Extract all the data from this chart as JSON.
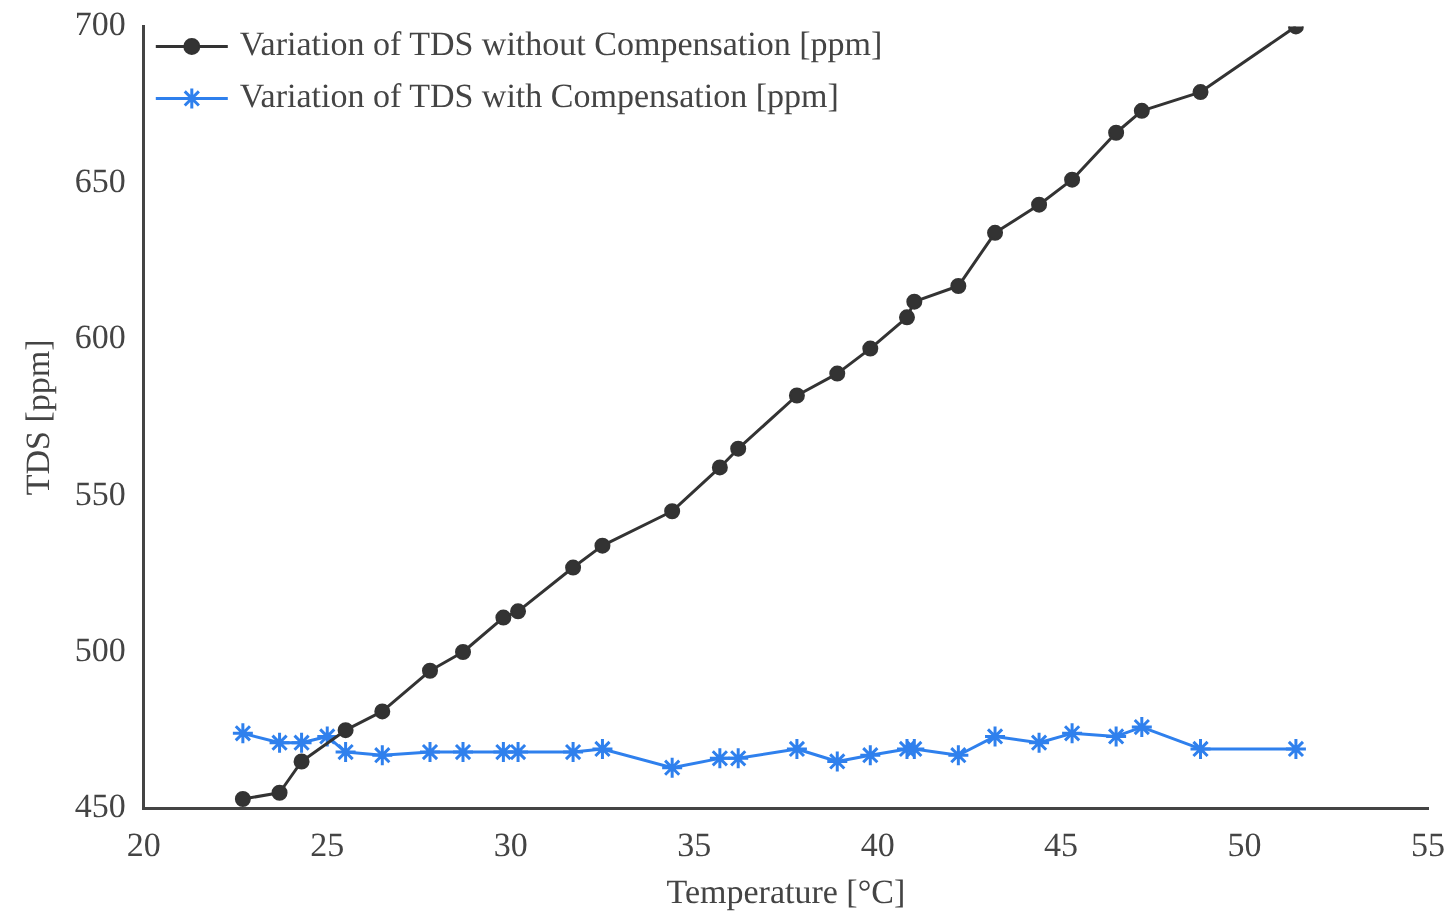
{
  "chart_data": {
    "type": "line",
    "xlabel": "Temperature [°C]",
    "ylabel": "TDS [ppm]",
    "xlim": [
      20,
      55
    ],
    "xticks": [
      20,
      25,
      30,
      35,
      40,
      45,
      50,
      55
    ],
    "ylim": [
      450,
      700
    ],
    "yticks": [
      450,
      500,
      550,
      600,
      650,
      700
    ],
    "grid": false,
    "legend": "top left",
    "series": [
      {
        "name": "Variation of TDS without Compensation [ppm]",
        "color": "#333333",
        "marker": "circle",
        "x": [
          22.7,
          23.7,
          24.3,
          25.5,
          26.5,
          27.8,
          28.7,
          29.8,
          30.2,
          31.7,
          32.5,
          34.4,
          35.7,
          36.2,
          37.8,
          38.9,
          39.8,
          40.8,
          41.0,
          42.2,
          43.2,
          44.4,
          45.3,
          46.5,
          47.2,
          48.8,
          51.4
        ],
        "values": [
          453,
          455,
          465,
          475,
          481,
          494,
          500,
          511,
          513,
          527,
          534,
          545,
          559,
          565,
          582,
          589,
          597,
          607,
          612,
          617,
          634,
          643,
          651,
          666,
          673,
          679,
          700
        ]
      },
      {
        "name": "Variation of TDS with Compensation [ppm]",
        "color": "#2f80ed",
        "marker": "cross",
        "x": [
          22.7,
          23.7,
          24.3,
          25.0,
          25.5,
          26.5,
          27.8,
          28.7,
          29.8,
          30.2,
          31.7,
          32.5,
          34.4,
          35.7,
          36.2,
          37.8,
          38.9,
          39.8,
          40.8,
          41.0,
          42.2,
          43.2,
          44.4,
          45.3,
          46.5,
          47.2,
          48.8,
          51.4
        ],
        "values": [
          474,
          471,
          471,
          473,
          468,
          467,
          468,
          468,
          468,
          468,
          468,
          469,
          463,
          466,
          466,
          469,
          465,
          467,
          469,
          469,
          467,
          473,
          471,
          474,
          473,
          476,
          469,
          469
        ]
      }
    ]
  }
}
